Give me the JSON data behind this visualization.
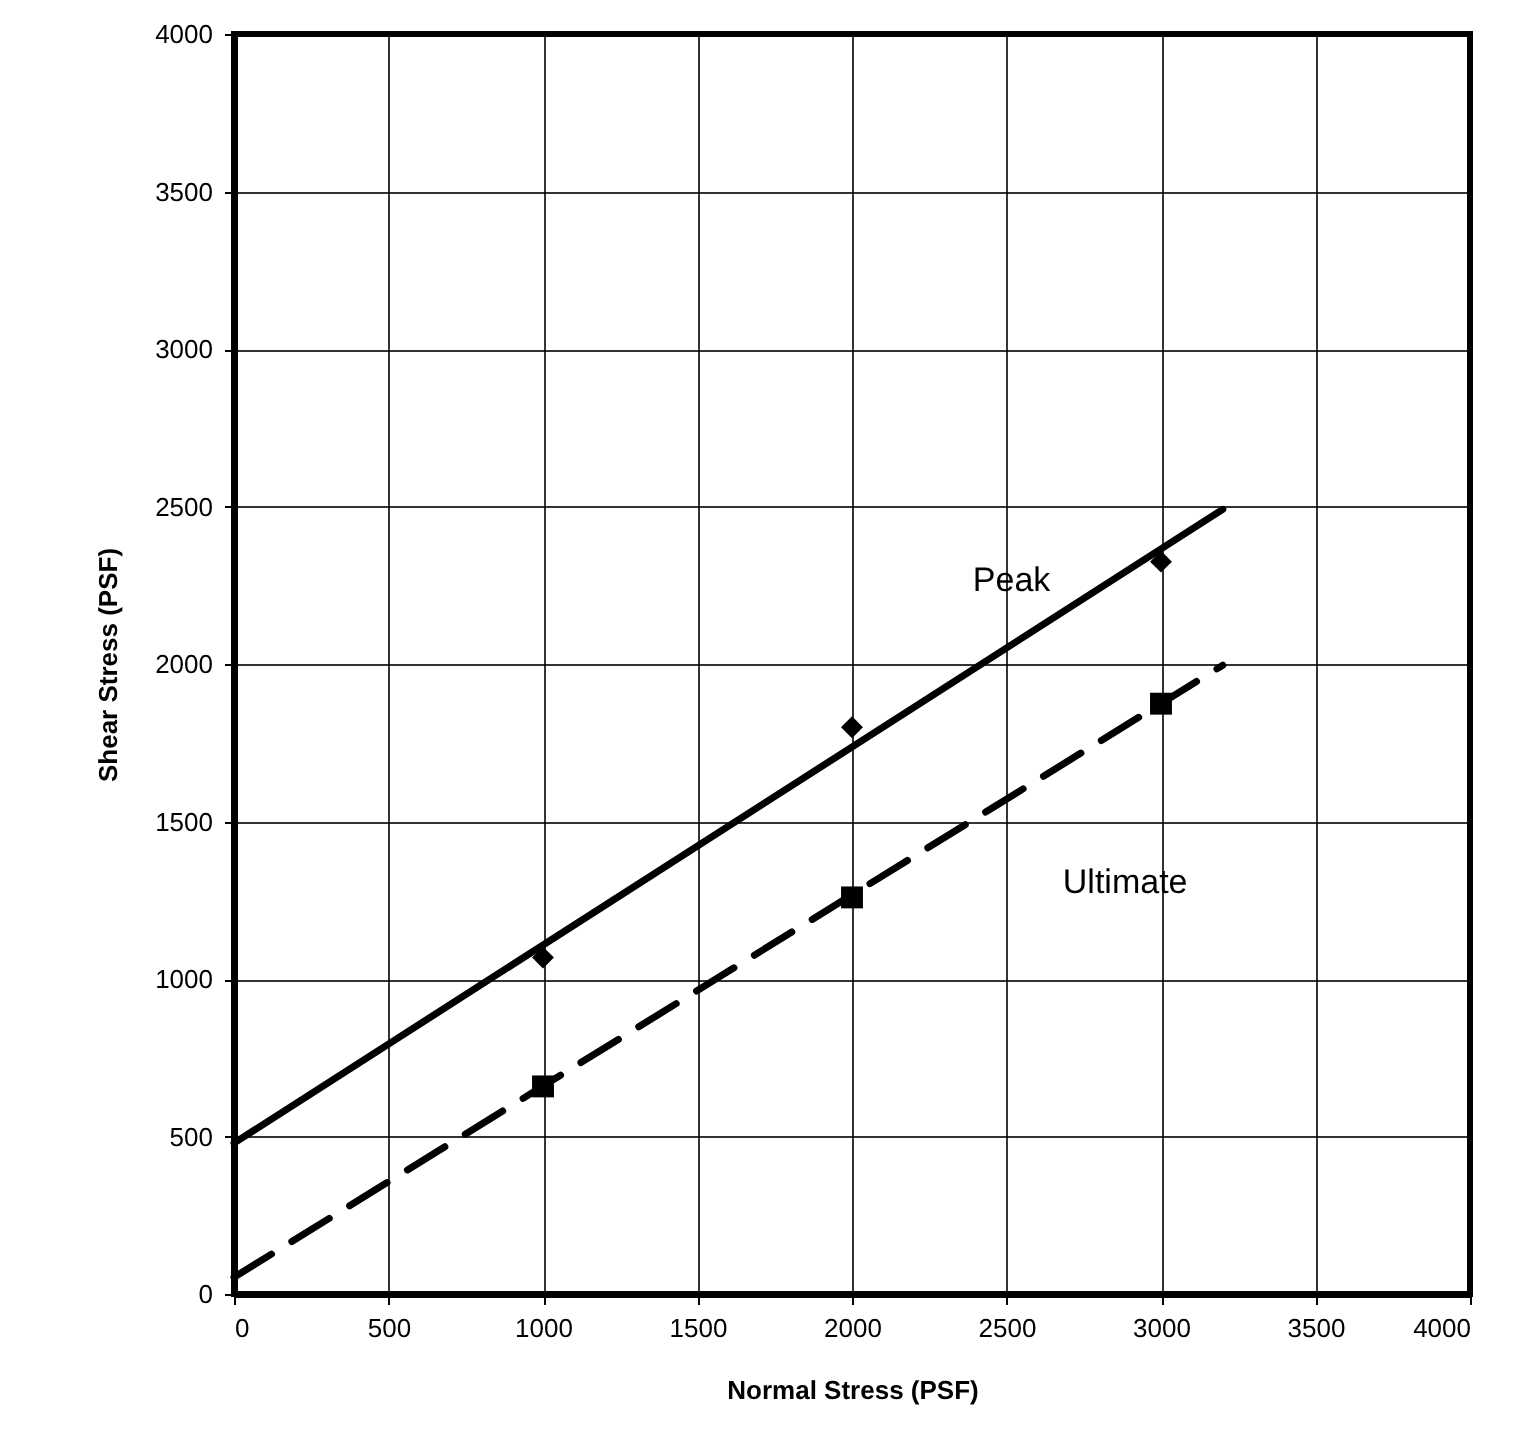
{
  "chart_data": {
    "type": "scatter",
    "xlabel": "Normal Stress (PSF)",
    "ylabel": "Shear Stress (PSF)",
    "xlim": [
      0,
      4000
    ],
    "ylim": [
      0,
      4000
    ],
    "xticks": [
      0,
      500,
      1000,
      1500,
      2000,
      2500,
      3000,
      3500,
      4000
    ],
    "yticks": [
      0,
      500,
      1000,
      1500,
      2000,
      2500,
      3000,
      3500,
      4000
    ],
    "grid": true,
    "series": [
      {
        "x": [
          1000,
          2000,
          3000
        ],
        "values": [
          1068,
          1799,
          2325
        ],
        "color": "#000000",
        "marker": "diamond"
      },
      {
        "x": [
          1000,
          2000,
          3000
        ],
        "values": [
          659,
          1259,
          1874
        ],
        "color": "#000000",
        "marker": "square"
      },
      {
        "type": "line",
        "name": "Peak",
        "x": [
          0,
          3200
        ],
        "values": [
          479,
          2491
        ],
        "color": "#000000",
        "line_style": "solid"
      },
      {
        "type": "line",
        "name": "Ultimate",
        "x": [
          0,
          3200
        ],
        "values": [
          53,
          1996
        ],
        "color": "#000000",
        "line_style": "dashed"
      }
    ]
  }
}
